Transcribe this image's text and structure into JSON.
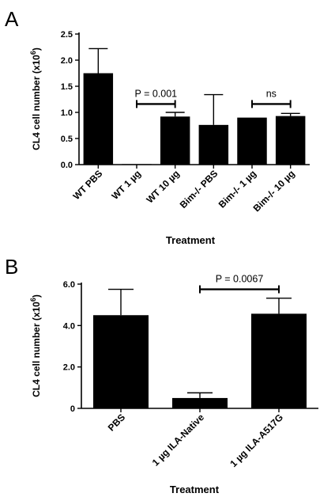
{
  "chart_data": [
    {
      "panel_label": "A",
      "type": "bar",
      "ylabel": "CL4 cell number (x10",
      "ylabel_sup": "6",
      "ylabel_close": ")",
      "xlabel": "Treatment",
      "ylim": [
        0,
        2.5
      ],
      "ytick_values": [
        0,
        0.5,
        1.0,
        1.5,
        2.0,
        2.5
      ],
      "ytick_labels": [
        "0.0",
        "0.5",
        "1.0",
        "1.5",
        "2.0",
        "2.5"
      ],
      "categories": [
        "WT PBS",
        "WT 1 µg",
        "WT 10 µg",
        "Bim-/- PBS",
        "Bim-/- 1 µg",
        "Bim-/- 10 µg"
      ],
      "values": [
        1.75,
        0.01,
        0.92,
        0.76,
        0.9,
        0.93
      ],
      "errors": [
        0.47,
        0.0,
        0.08,
        0.58,
        0.0,
        0.05
      ],
      "annotations": [
        {
          "text": "P = 0.001",
          "from": 1,
          "to": 2,
          "y": 1.16
        },
        {
          "text": "ns",
          "from": 4,
          "to": 5,
          "y": 1.16
        }
      ]
    },
    {
      "panel_label": "B",
      "type": "bar",
      "ylabel": "CL4 cell number (x10",
      "ylabel_sup": "6",
      "ylabel_close": ")",
      "xlabel": "Treatment",
      "ylim": [
        0,
        6.0
      ],
      "ytick_values": [
        0,
        2.0,
        4.0,
        6.0
      ],
      "ytick_labels": [
        "0",
        "2.0",
        "4.0",
        "6.0"
      ],
      "categories": [
        "PBS",
        "1 µg ILA-Native",
        "1 µg ILA-A517G"
      ],
      "values": [
        4.5,
        0.5,
        4.57
      ],
      "errors": [
        1.25,
        0.25,
        0.75
      ],
      "annotations": [
        {
          "text": "P = 0.0067",
          "from": 1,
          "to": 2,
          "y": 5.75
        }
      ]
    }
  ]
}
